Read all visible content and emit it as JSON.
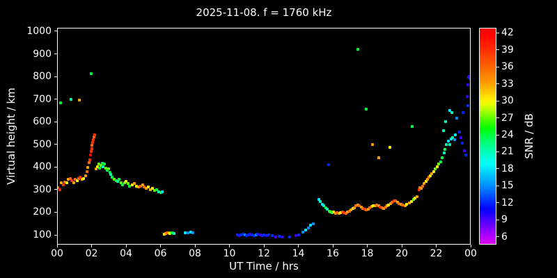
{
  "colors": {
    "background": "#000000",
    "foreground": "#ffffff"
  },
  "chart_data": {
    "type": "scatter",
    "title": "2025-11-08. f = 1760 kHz",
    "xlabel": "UT Time / hrs",
    "ylabel": "Virtual height / km",
    "xlim": [
      0,
      24
    ],
    "ylim": [
      57,
      1015
    ],
    "grid": false,
    "x_ticks": {
      "values": [
        0,
        2,
        4,
        6,
        8,
        10,
        12,
        14,
        16,
        18,
        20,
        22,
        24
      ],
      "labels": [
        "00",
        "02",
        "04",
        "06",
        "08",
        "10",
        "12",
        "14",
        "16",
        "18",
        "20",
        "22",
        "00"
      ]
    },
    "y_ticks": {
      "values": [
        100,
        200,
        300,
        400,
        500,
        600,
        700,
        800,
        900,
        1000
      ],
      "labels": [
        "100",
        "200",
        "300",
        "400",
        "500",
        "600",
        "700",
        "800",
        "900",
        "1000"
      ]
    },
    "colorbar": {
      "label": "SNR / dB",
      "tick_values": [
        6,
        9,
        12,
        15,
        18,
        21,
        24,
        27,
        30,
        33,
        36,
        39,
        42
      ],
      "range": [
        4.6,
        42.9
      ],
      "colormap": "rainbow"
    },
    "points_format": [
      "ut_hours",
      "virtual_height_km",
      "snr_db"
    ],
    "points": [
      [
        0.05,
        310,
        36
      ],
      [
        0.15,
        300,
        39
      ],
      [
        0.25,
        330,
        33
      ],
      [
        0.35,
        320,
        39
      ],
      [
        0.45,
        335,
        36
      ],
      [
        0.55,
        330,
        30
      ],
      [
        0.65,
        345,
        33
      ],
      [
        0.75,
        350,
        36
      ],
      [
        0.85,
        340,
        39
      ],
      [
        0.95,
        330,
        33
      ],
      [
        1.05,
        345,
        36
      ],
      [
        1.15,
        340,
        30
      ],
      [
        1.25,
        350,
        36
      ],
      [
        1.35,
        355,
        39
      ],
      [
        1.45,
        345,
        33
      ],
      [
        1.55,
        350,
        30
      ],
      [
        1.65,
        362,
        33
      ],
      [
        1.72,
        380,
        36
      ],
      [
        1.78,
        398,
        33
      ],
      [
        1.84,
        418,
        36
      ],
      [
        1.88,
        432,
        39
      ],
      [
        0.18,
        685,
        24
      ],
      [
        0.8,
        700,
        21
      ],
      [
        1.3,
        695,
        33
      ],
      [
        1.92,
        452,
        42
      ],
      [
        1.96,
        468,
        39
      ],
      [
        2.0,
        482,
        39
      ],
      [
        2.03,
        496,
        36
      ],
      [
        2.06,
        508,
        39
      ],
      [
        2.1,
        522,
        39
      ],
      [
        2.13,
        534,
        36
      ],
      [
        2.16,
        542,
        39
      ],
      [
        1.98,
        812,
        24
      ],
      [
        2.28,
        392,
        33
      ],
      [
        2.35,
        402,
        30
      ],
      [
        2.42,
        412,
        27
      ],
      [
        2.48,
        396,
        24
      ],
      [
        2.55,
        406,
        27
      ],
      [
        2.62,
        416,
        24
      ],
      [
        2.68,
        402,
        21
      ],
      [
        2.75,
        412,
        24
      ],
      [
        2.82,
        396,
        27
      ],
      [
        2.9,
        386,
        24
      ],
      [
        2.98,
        392,
        27
      ],
      [
        3.05,
        376,
        24
      ],
      [
        3.12,
        366,
        21
      ],
      [
        3.2,
        356,
        24
      ],
      [
        3.3,
        346,
        27
      ],
      [
        3.42,
        340,
        24
      ],
      [
        3.52,
        336,
        21
      ],
      [
        3.6,
        346,
        24
      ],
      [
        3.7,
        331,
        27
      ],
      [
        3.8,
        322,
        24
      ],
      [
        3.9,
        331,
        27
      ],
      [
        4.0,
        336,
        30
      ],
      [
        4.1,
        326,
        27
      ],
      [
        4.2,
        316,
        24
      ],
      [
        4.35,
        321,
        30
      ],
      [
        4.5,
        326,
        33
      ],
      [
        4.6,
        316,
        30
      ],
      [
        4.72,
        311,
        33
      ],
      [
        4.85,
        316,
        36
      ],
      [
        4.95,
        321,
        33
      ],
      [
        5.05,
        311,
        36
      ],
      [
        5.15,
        306,
        33
      ],
      [
        5.3,
        311,
        30
      ],
      [
        5.42,
        301,
        33
      ],
      [
        5.52,
        306,
        30
      ],
      [
        5.65,
        296,
        27
      ],
      [
        5.78,
        301,
        24
      ],
      [
        5.9,
        291,
        21
      ],
      [
        6.0,
        286,
        24
      ],
      [
        6.1,
        291,
        18
      ],
      [
        6.22,
        104,
        30
      ],
      [
        6.3,
        107,
        33
      ],
      [
        6.38,
        110,
        36
      ],
      [
        6.46,
        108,
        33
      ],
      [
        6.54,
        105,
        30
      ],
      [
        6.62,
        108,
        27
      ],
      [
        6.7,
        110,
        24
      ],
      [
        6.78,
        107,
        21
      ],
      [
        7.45,
        110,
        18
      ],
      [
        7.6,
        108,
        15
      ],
      [
        7.75,
        112,
        18
      ],
      [
        7.88,
        110,
        15
      ],
      [
        10.45,
        100,
        12
      ],
      [
        10.55,
        98,
        9
      ],
      [
        10.68,
        100,
        12
      ],
      [
        10.8,
        102,
        12
      ],
      [
        10.9,
        100,
        15
      ],
      [
        11.0,
        98,
        12
      ],
      [
        11.1,
        100,
        12
      ],
      [
        11.2,
        102,
        9
      ],
      [
        11.32,
        100,
        12
      ],
      [
        11.45,
        98,
        12
      ],
      [
        11.55,
        100,
        15
      ],
      [
        11.65,
        102,
        12
      ],
      [
        11.78,
        100,
        9
      ],
      [
        11.9,
        98,
        12
      ],
      [
        12.0,
        100,
        12
      ],
      [
        12.15,
        98,
        9
      ],
      [
        12.3,
        100,
        12
      ],
      [
        12.5,
        96,
        12
      ],
      [
        12.7,
        92,
        9
      ],
      [
        12.9,
        95,
        12
      ],
      [
        13.05,
        90,
        9
      ],
      [
        13.5,
        92,
        12
      ],
      [
        13.85,
        96,
        9
      ],
      [
        14.0,
        99,
        12
      ],
      [
        14.25,
        112,
        15
      ],
      [
        14.42,
        122,
        18
      ],
      [
        14.58,
        132,
        15
      ],
      [
        14.72,
        142,
        18
      ],
      [
        14.88,
        150,
        15
      ],
      [
        15.18,
        256,
        18
      ],
      [
        15.28,
        246,
        21
      ],
      [
        15.38,
        236,
        18
      ],
      [
        15.48,
        228,
        21
      ],
      [
        15.58,
        220,
        24
      ],
      [
        15.68,
        213,
        21
      ],
      [
        15.78,
        206,
        24
      ],
      [
        15.88,
        200,
        27
      ],
      [
        15.96,
        198,
        24
      ],
      [
        15.75,
        410,
        12
      ],
      [
        16.05,
        200,
        30
      ],
      [
        16.15,
        196,
        33
      ],
      [
        16.25,
        198,
        36
      ],
      [
        16.35,
        194,
        33
      ],
      [
        16.45,
        198,
        30
      ],
      [
        16.55,
        202,
        36
      ],
      [
        16.65,
        198,
        39
      ],
      [
        16.75,
        196,
        36
      ],
      [
        16.85,
        200,
        33
      ],
      [
        16.95,
        205,
        36
      ],
      [
        17.05,
        210,
        33
      ],
      [
        17.15,
        216,
        30
      ],
      [
        17.25,
        221,
        33
      ],
      [
        17.35,
        228,
        36
      ],
      [
        17.45,
        232,
        33
      ],
      [
        17.55,
        228,
        36
      ],
      [
        17.65,
        222,
        33
      ],
      [
        17.75,
        218,
        36
      ],
      [
        17.85,
        215,
        39
      ],
      [
        17.95,
        212,
        36
      ],
      [
        18.05,
        215,
        33
      ],
      [
        18.15,
        220,
        36
      ],
      [
        18.25,
        226,
        33
      ],
      [
        18.35,
        230,
        30
      ],
      [
        18.45,
        228,
        33
      ],
      [
        18.55,
        232,
        36
      ],
      [
        18.65,
        228,
        33
      ],
      [
        18.75,
        224,
        39
      ],
      [
        18.85,
        220,
        36
      ],
      [
        18.95,
        218,
        33
      ],
      [
        19.05,
        222,
        36
      ],
      [
        19.15,
        228,
        33
      ],
      [
        19.25,
        232,
        30
      ],
      [
        19.35,
        238,
        33
      ],
      [
        19.45,
        244,
        36
      ],
      [
        19.55,
        250,
        39
      ],
      [
        19.65,
        252,
        36
      ],
      [
        19.75,
        245,
        33
      ],
      [
        19.85,
        238,
        36
      ],
      [
        19.95,
        234,
        33
      ],
      [
        20.05,
        232,
        36
      ],
      [
        20.18,
        230,
        33
      ],
      [
        20.3,
        234,
        30
      ],
      [
        20.45,
        240,
        33
      ],
      [
        20.58,
        248,
        30
      ],
      [
        20.68,
        256,
        27
      ],
      [
        20.78,
        263,
        30
      ],
      [
        17.45,
        920,
        24
      ],
      [
        17.95,
        655,
        24
      ],
      [
        18.3,
        500,
        33
      ],
      [
        18.65,
        442,
        33
      ],
      [
        19.3,
        486,
        30
      ],
      [
        20.6,
        580,
        24
      ],
      [
        20.9,
        270,
        33
      ],
      [
        21.0,
        300,
        39
      ],
      [
        21.06,
        310,
        36
      ],
      [
        21.12,
        306,
        33
      ],
      [
        21.2,
        316,
        36
      ],
      [
        21.3,
        326,
        33
      ],
      [
        21.4,
        336,
        30
      ],
      [
        21.5,
        346,
        33
      ],
      [
        21.58,
        356,
        36
      ],
      [
        21.66,
        362,
        30
      ],
      [
        21.75,
        371,
        33
      ],
      [
        21.85,
        381,
        30
      ],
      [
        21.95,
        391,
        27
      ],
      [
        22.05,
        402,
        30
      ],
      [
        22.15,
        413,
        27
      ],
      [
        22.25,
        423,
        24
      ],
      [
        22.35,
        441,
        24
      ],
      [
        22.45,
        461,
        21
      ],
      [
        22.52,
        479,
        24
      ],
      [
        22.6,
        500,
        21
      ],
      [
        22.7,
        516,
        18
      ],
      [
        22.77,
        498,
        21
      ],
      [
        22.85,
        523,
        18
      ],
      [
        22.95,
        531,
        21
      ],
      [
        23.05,
        521,
        15
      ],
      [
        23.12,
        541,
        18
      ],
      [
        22.42,
        562,
        21
      ],
      [
        22.55,
        601,
        21
      ],
      [
        22.8,
        651,
        18
      ],
      [
        22.92,
        641,
        21
      ],
      [
        23.18,
        616,
        15
      ],
      [
        23.35,
        556,
        12
      ],
      [
        23.45,
        531,
        9
      ],
      [
        23.52,
        506,
        12
      ],
      [
        23.62,
        471,
        9
      ],
      [
        23.72,
        453,
        12
      ],
      [
        23.55,
        641,
        12
      ],
      [
        23.85,
        672,
        12
      ],
      [
        23.8,
        712,
        9
      ],
      [
        23.82,
        762,
        9
      ],
      [
        23.86,
        796,
        12
      ],
      [
        23.92,
        801,
        9
      ],
      [
        23.97,
        790,
        12
      ]
    ]
  }
}
